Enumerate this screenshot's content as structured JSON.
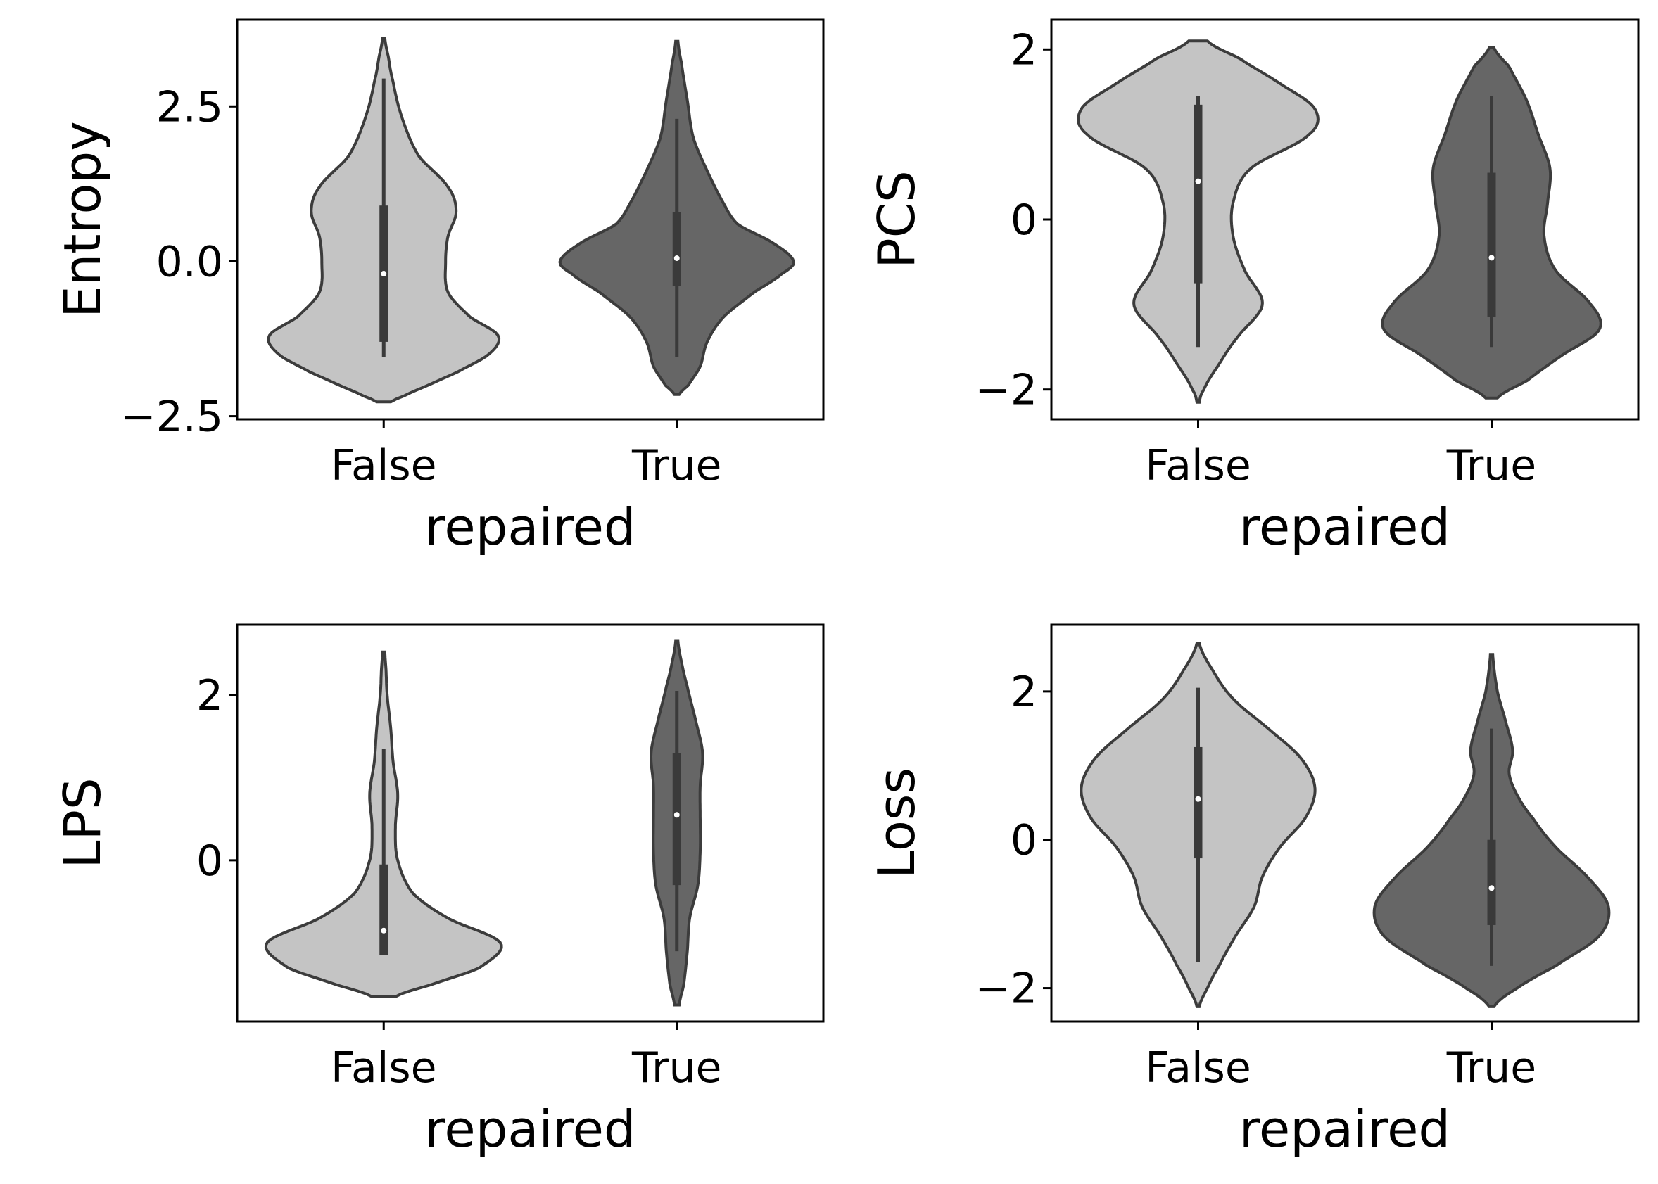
{
  "colors": {
    "false_violin": "#c4c4c4",
    "true_violin": "#666666",
    "outline": "#3c3c3c",
    "inner_box": "#3a3a3a",
    "median": "#ffffff"
  },
  "chart_data": [
    {
      "type": "violin",
      "xlabel": "repaired",
      "ylabel": "Entropy",
      "categories": [
        "False",
        "True"
      ],
      "ylim": [
        -2.55,
        3.9
      ],
      "yticks": [
        -2.5,
        0.0,
        2.5
      ],
      "ytick_labels": [
        "−2.5",
        "0.0",
        "2.5"
      ],
      "grid": false,
      "violins": [
        {
          "category": "False",
          "color": "#c4c4c4",
          "median": -0.2,
          "q1": -1.3,
          "q3": 0.9,
          "whisker_low": -1.55,
          "whisker_high": 2.95,
          "density_y": [
            -2.27,
            -2.2,
            -2.0,
            -1.8,
            -1.5,
            -1.2,
            -0.9,
            -0.5,
            0.0,
            0.4,
            0.8,
            1.2,
            1.7,
            2.3,
            2.9,
            3.3,
            3.6
          ],
          "density_w": [
            0.06,
            0.15,
            0.38,
            0.62,
            0.9,
            0.98,
            0.74,
            0.55,
            0.53,
            0.55,
            0.62,
            0.55,
            0.3,
            0.16,
            0.08,
            0.04,
            0.01
          ]
        },
        {
          "category": "True",
          "color": "#666666",
          "median": 0.05,
          "q1": -0.4,
          "q3": 0.8,
          "whisker_low": -1.55,
          "whisker_high": 2.3,
          "density_y": [
            -2.15,
            -2.0,
            -1.7,
            -1.3,
            -0.9,
            -0.5,
            -0.2,
            0.0,
            0.3,
            0.6,
            1.0,
            1.5,
            2.0,
            2.6,
            3.2,
            3.55
          ],
          "density_w": [
            0.02,
            0.1,
            0.2,
            0.26,
            0.4,
            0.66,
            0.9,
            1.0,
            0.82,
            0.52,
            0.38,
            0.25,
            0.14,
            0.09,
            0.04,
            0.01
          ]
        }
      ]
    },
    {
      "type": "violin",
      "xlabel": "repaired",
      "ylabel": "PCS",
      "categories": [
        "False",
        "True"
      ],
      "ylim": [
        -2.35,
        2.35
      ],
      "yticks": [
        -2,
        0,
        2
      ],
      "ytick_labels": [
        "−2",
        "0",
        "2"
      ],
      "grid": false,
      "violins": [
        {
          "category": "False",
          "color": "#c4c4c4",
          "median": 0.45,
          "q1": -0.75,
          "q3": 1.35,
          "whisker_low": -1.5,
          "whisker_high": 1.45,
          "density_y": [
            -2.15,
            -2.0,
            -1.7,
            -1.4,
            -1.0,
            -0.6,
            -0.2,
            0.2,
            0.6,
            1.0,
            1.3,
            1.6,
            1.9,
            2.1
          ],
          "density_w": [
            0.01,
            0.05,
            0.18,
            0.33,
            0.55,
            0.4,
            0.3,
            0.3,
            0.45,
            0.95,
            1.0,
            0.7,
            0.35,
            0.08
          ]
        },
        {
          "category": "True",
          "color": "#666666",
          "median": -0.45,
          "q1": -1.15,
          "q3": 0.55,
          "whisker_low": -1.5,
          "whisker_high": 1.45,
          "density_y": [
            -2.1,
            -1.9,
            -1.6,
            -1.3,
            -1.0,
            -0.6,
            -0.2,
            0.2,
            0.6,
            1.0,
            1.4,
            1.8,
            2.02
          ],
          "density_w": [
            0.05,
            0.3,
            0.6,
            0.92,
            0.85,
            0.55,
            0.45,
            0.48,
            0.5,
            0.4,
            0.3,
            0.15,
            0.02
          ]
        }
      ]
    },
    {
      "type": "violin",
      "xlabel": "repaired",
      "ylabel": "LPS",
      "categories": [
        "False",
        "True"
      ],
      "ylim": [
        -1.95,
        2.85
      ],
      "yticks": [
        0,
        2
      ],
      "ytick_labels": [
        "0",
        "2"
      ],
      "grid": false,
      "violins": [
        {
          "category": "False",
          "color": "#c4c4c4",
          "median": -0.85,
          "q1": -1.15,
          "q3": -0.05,
          "whisker_low": -1.15,
          "whisker_high": 1.35,
          "density_y": [
            -1.65,
            -1.5,
            -1.3,
            -1.0,
            -0.7,
            -0.4,
            0.0,
            0.4,
            0.8,
            1.2,
            1.6,
            2.0,
            2.3,
            2.52
          ],
          "density_w": [
            0.1,
            0.42,
            0.82,
            1.0,
            0.55,
            0.25,
            0.12,
            0.1,
            0.12,
            0.08,
            0.06,
            0.03,
            0.02,
            0.01
          ]
        },
        {
          "category": "True",
          "color": "#666666",
          "median": 0.55,
          "q1": -0.3,
          "q3": 1.3,
          "whisker_low": -1.1,
          "whisker_high": 2.05,
          "density_y": [
            -1.75,
            -1.5,
            -1.1,
            -0.7,
            -0.3,
            0.1,
            0.5,
            0.9,
            1.3,
            1.7,
            2.1,
            2.4,
            2.65
          ],
          "density_w": [
            0.02,
            0.06,
            0.09,
            0.11,
            0.18,
            0.2,
            0.2,
            0.2,
            0.22,
            0.16,
            0.09,
            0.04,
            0.01
          ]
        }
      ]
    },
    {
      "type": "violin",
      "xlabel": "repaired",
      "ylabel": "Loss",
      "categories": [
        "False",
        "True"
      ],
      "ylim": [
        -2.45,
        2.9
      ],
      "yticks": [
        -2,
        0,
        2
      ],
      "ytick_labels": [
        "−2",
        "0",
        "2"
      ],
      "grid": false,
      "violins": [
        {
          "category": "False",
          "color": "#c4c4c4",
          "median": 0.55,
          "q1": -0.25,
          "q3": 1.25,
          "whisker_low": -1.65,
          "whisker_high": 2.05,
          "density_y": [
            -2.25,
            -2.0,
            -1.7,
            -1.3,
            -0.9,
            -0.5,
            -0.1,
            0.3,
            0.7,
            1.1,
            1.5,
            1.9,
            2.3,
            2.65
          ],
          "density_w": [
            0.01,
            0.08,
            0.18,
            0.32,
            0.48,
            0.55,
            0.7,
            0.92,
            1.0,
            0.88,
            0.6,
            0.3,
            0.12,
            0.01
          ]
        },
        {
          "category": "True",
          "color": "#666666",
          "median": -0.65,
          "q1": -1.15,
          "q3": 0.0,
          "whisker_low": -1.7,
          "whisker_high": 1.5,
          "density_y": [
            -2.25,
            -2.0,
            -1.7,
            -1.3,
            -0.9,
            -0.5,
            -0.1,
            0.3,
            0.6,
            0.9,
            1.2,
            1.6,
            2.0,
            2.5
          ],
          "density_w": [
            0.02,
            0.22,
            0.55,
            0.92,
            1.0,
            0.82,
            0.55,
            0.35,
            0.22,
            0.15,
            0.18,
            0.12,
            0.05,
            0.01
          ]
        }
      ]
    }
  ]
}
